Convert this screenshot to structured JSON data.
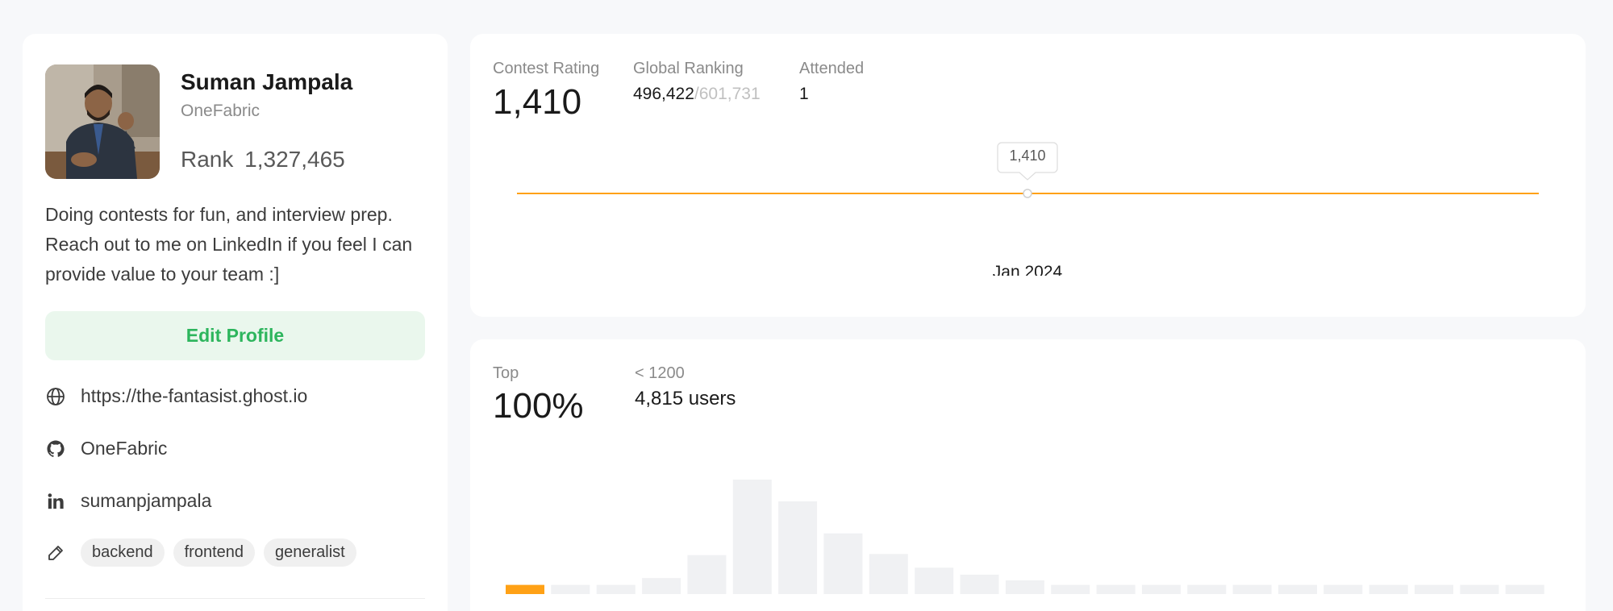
{
  "profile": {
    "name": "Suman Jampala",
    "company": "OneFabric",
    "rank_label": "Rank",
    "rank_value": "1,327,465",
    "bio": "Doing contests for fun, and interview prep. Reach out to me on LinkedIn if you feel I can provide value to your team :]",
    "edit_label": "Edit Profile",
    "website": "https://the-fantasist.ghost.io",
    "github": "OneFabric",
    "linkedin": "sumanpjampala",
    "tags": [
      "backend",
      "frontend",
      "generalist"
    ],
    "icons": [
      "globe-icon",
      "github-icon",
      "linkedin-icon",
      "tag-icon"
    ]
  },
  "contest": {
    "rating_label": "Contest Rating",
    "rating_value": "1,410",
    "global_label": "Global Ranking",
    "global_rank": "496,422",
    "global_total": "/601,731",
    "attended_label": "Attended",
    "attended_value": "1",
    "tooltip": "1,410",
    "x_label": "Jan 2024",
    "line_color": "#ffa116"
  },
  "top": {
    "top_label": "Top",
    "top_value": "100%",
    "bucket_label": "< 1200",
    "users": "4,815 users",
    "highlight_color": "#ffa116",
    "bar_color": "#f0f1f3"
  },
  "chart_data": {
    "type": "bar",
    "title": "",
    "xlabel": "",
    "ylabel": "",
    "values": [
      0.08,
      0.08,
      0.08,
      0.14,
      0.34,
      1.0,
      0.81,
      0.53,
      0.35,
      0.23,
      0.17,
      0.12,
      0.08,
      0.08,
      0.08,
      0.08,
      0.08,
      0.08,
      0.08,
      0.08,
      0.08,
      0.08,
      0.08
    ],
    "highlight_index": 0
  }
}
